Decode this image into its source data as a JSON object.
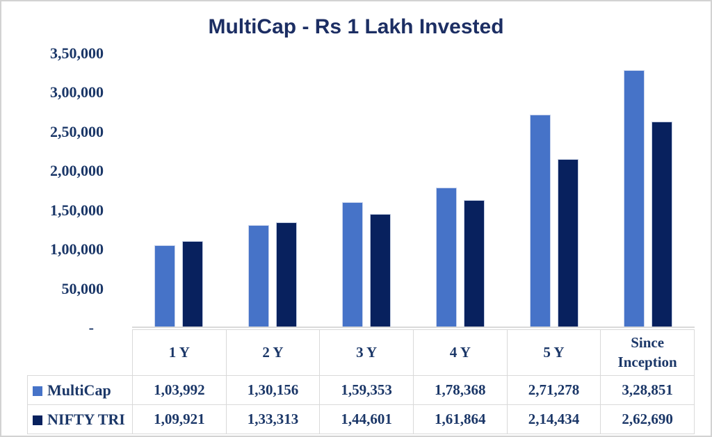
{
  "chart_data": {
    "type": "bar",
    "title": "MultiCap - Rs 1 Lakh Invested",
    "categories": [
      "1 Y",
      "2 Y",
      "3 Y",
      "4 Y",
      "5 Y",
      "Since Inception"
    ],
    "series": [
      {
        "name": "MultiCap",
        "color": "#4673c8",
        "values": [
          103992,
          130156,
          159353,
          178368,
          271278,
          328851
        ],
        "labels": [
          "1,03,992",
          "1,30,156",
          "1,59,353",
          "1,78,368",
          "2,71,278",
          "3,28,851"
        ]
      },
      {
        "name": "NIFTY TRI",
        "color": "#08215e",
        "values": [
          109921,
          133313,
          144601,
          161864,
          214434,
          262690
        ],
        "labels": [
          "1,09,921",
          "1,33,313",
          "1,44,601",
          "1,61,864",
          "2,14,434",
          "2,62,690"
        ]
      }
    ],
    "ylim": [
      0,
      350000
    ],
    "ytick_labels": [
      "3,50,000",
      "3,00,000",
      "2,50,000",
      "2,00,000",
      "1,50,000",
      "1,00,000",
      "50,000",
      "-"
    ],
    "grid": false,
    "legend_position": "table-row-labels",
    "text_color": "#1b3768",
    "title_color": "#1c2e63",
    "axis_line_color": "#d9d9d9"
  }
}
